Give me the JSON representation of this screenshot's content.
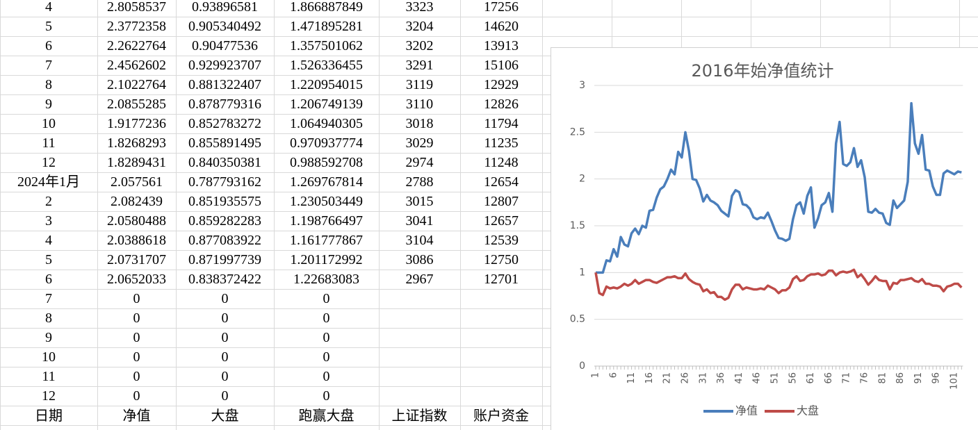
{
  "sheet": {
    "rows": [
      [
        "4",
        "2.8058537",
        "0.93896581",
        "1.866887849",
        "3323",
        "17256"
      ],
      [
        "5",
        "2.3772358",
        "0.905340492",
        "1.471895281",
        "3204",
        "14620"
      ],
      [
        "6",
        "2.2622764",
        "0.90477536",
        "1.357501062",
        "3202",
        "13913"
      ],
      [
        "7",
        "2.4562602",
        "0.929923707",
        "1.526336455",
        "3291",
        "15106"
      ],
      [
        "8",
        "2.1022764",
        "0.881322407",
        "1.220954015",
        "3119",
        "12929"
      ],
      [
        "9",
        "2.0855285",
        "0.878779316",
        "1.206749139",
        "3110",
        "12826"
      ],
      [
        "10",
        "1.9177236",
        "0.852783272",
        "1.064940305",
        "3018",
        "11794"
      ],
      [
        "11",
        "1.8268293",
        "0.855891495",
        "0.970937774",
        "3029",
        "11235"
      ],
      [
        "12",
        "1.8289431",
        "0.840350381",
        "0.988592708",
        "2974",
        "11248"
      ],
      [
        "2024年1月",
        "2.057561",
        "0.787793162",
        "1.269767814",
        "2788",
        "12654"
      ],
      [
        "2",
        "2.082439",
        "0.851935575",
        "1.230503449",
        "3015",
        "12807"
      ],
      [
        "3",
        "2.0580488",
        "0.859282283",
        "1.198766497",
        "3041",
        "12657"
      ],
      [
        "4",
        "2.0388618",
        "0.877083922",
        "1.161777867",
        "3104",
        "12539"
      ],
      [
        "5",
        "2.0731707",
        "0.871997739",
        "1.201172992",
        "3086",
        "12750"
      ],
      [
        "6",
        "2.0652033",
        "0.838372422",
        "1.22683083",
        "2967",
        "12701"
      ],
      [
        "7",
        "0",
        "0",
        "0"
      ],
      [
        "8",
        "0",
        "0",
        "0"
      ],
      [
        "9",
        "0",
        "0",
        "0"
      ],
      [
        "10",
        "0",
        "0",
        "0"
      ],
      [
        "11",
        "0",
        "0",
        "0"
      ],
      [
        "12",
        "0",
        "0",
        "0"
      ],
      [
        "日期",
        "净值",
        "大盘",
        "跑赢大盘",
        "上证指数",
        "账户资金"
      ]
    ]
  },
  "chart_data": {
    "type": "line",
    "title": "2016年始净值统计",
    "categories": [
      "1",
      null,
      null,
      null,
      null,
      "6",
      null,
      null,
      null,
      null,
      "11",
      null,
      null,
      null,
      null,
      "16",
      null,
      null,
      null,
      null,
      "21",
      null,
      null,
      null,
      null,
      "26",
      null,
      null,
      null,
      null,
      "31",
      null,
      null,
      null,
      null,
      "36",
      null,
      null,
      null,
      null,
      "41",
      null,
      null,
      null,
      null,
      "46",
      null,
      null,
      null,
      null,
      "51",
      null,
      null,
      null,
      null,
      "56",
      null,
      null,
      null,
      null,
      "61",
      null,
      null,
      null,
      null,
      "66",
      null,
      null,
      null,
      null,
      "71",
      null,
      null,
      null,
      null,
      "76",
      null,
      null,
      null,
      null,
      "81",
      null,
      null,
      null,
      null,
      "86",
      null,
      null,
      null,
      null,
      "91",
      null,
      null,
      null,
      null,
      "96",
      null,
      null,
      null,
      null,
      "101",
      null,
      null
    ],
    "series": [
      {
        "name": "净值",
        "color": "#4a7ebb",
        "values": [
          1.0,
          1.0,
          1.0,
          1.13,
          1.12,
          1.25,
          1.17,
          1.38,
          1.3,
          1.28,
          1.42,
          1.47,
          1.41,
          1.5,
          1.48,
          1.66,
          1.67,
          1.8,
          1.89,
          1.92,
          2.0,
          2.1,
          2.05,
          2.29,
          2.23,
          2.5,
          2.3,
          2.0,
          1.99,
          1.9,
          1.76,
          1.83,
          1.77,
          1.75,
          1.72,
          1.66,
          1.63,
          1.6,
          1.82,
          1.88,
          1.86,
          1.73,
          1.72,
          1.68,
          1.59,
          1.57,
          1.59,
          1.58,
          1.64,
          1.55,
          1.45,
          1.37,
          1.36,
          1.34,
          1.36,
          1.57,
          1.72,
          1.75,
          1.63,
          1.82,
          1.91,
          1.48,
          1.58,
          1.72,
          1.75,
          1.85,
          1.65,
          2.38,
          2.61,
          2.16,
          2.14,
          2.18,
          2.33,
          2.13,
          2.2,
          2.02,
          1.65,
          1.64,
          1.68,
          1.64,
          1.63,
          1.53,
          1.51,
          1.77,
          1.69,
          1.73,
          1.77,
          1.97,
          2.81,
          2.38,
          2.27,
          2.47,
          2.1,
          2.09,
          1.92,
          1.83,
          1.83,
          2.06,
          2.09,
          2.07,
          2.05,
          2.08,
          2.07
        ]
      },
      {
        "name": "大盘",
        "color": "#be4b48",
        "values": [
          1.0,
          0.78,
          0.76,
          0.85,
          0.83,
          0.84,
          0.83,
          0.85,
          0.88,
          0.86,
          0.88,
          0.92,
          0.88,
          0.9,
          0.92,
          0.92,
          0.9,
          0.89,
          0.91,
          0.93,
          0.95,
          0.95,
          0.96,
          0.94,
          0.94,
          0.99,
          0.93,
          0.9,
          0.88,
          0.87,
          0.8,
          0.82,
          0.78,
          0.79,
          0.74,
          0.74,
          0.71,
          0.73,
          0.82,
          0.87,
          0.87,
          0.82,
          0.84,
          0.83,
          0.82,
          0.82,
          0.83,
          0.82,
          0.86,
          0.84,
          0.82,
          0.78,
          0.81,
          0.81,
          0.84,
          0.93,
          0.96,
          0.91,
          0.92,
          0.96,
          0.98,
          0.98,
          0.99,
          0.97,
          0.98,
          1.02,
          1.02,
          0.97,
          1.0,
          1.01,
          1.0,
          1.01,
          1.03,
          0.95,
          0.98,
          0.93,
          0.87,
          0.91,
          0.96,
          0.92,
          0.91,
          0.91,
          0.82,
          0.89,
          0.88,
          0.92,
          0.92,
          0.93,
          0.94,
          0.91,
          0.9,
          0.93,
          0.88,
          0.88,
          0.86,
          0.86,
          0.85,
          0.8,
          0.85,
          0.86,
          0.88,
          0.88,
          0.84
        ]
      }
    ],
    "ylim": [
      0,
      3
    ],
    "yticks": [
      0,
      0.5,
      1,
      1.5,
      2,
      2.5,
      3
    ],
    "grid": true,
    "legend": "bottom"
  }
}
